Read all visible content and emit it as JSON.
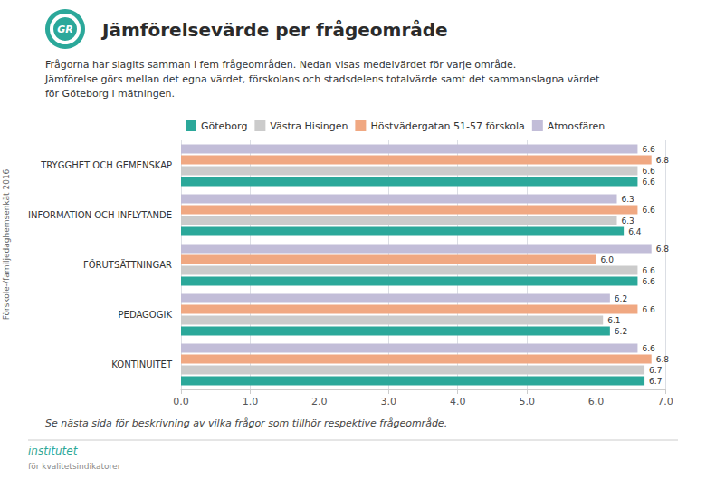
{
  "chart_data": {
    "type": "bar",
    "orientation": "horizontal",
    "title": "Jämförelsevärde per frågeområde",
    "subtitle": [
      "Frågorna har slagits samman i fem frågeområden. Nedan visas medelvärdet för varje område.",
      "Jämförelse görs mellan det egna värdet, förskolans och stadsdelens totalvärde samt det sammanslagna värdet",
      "för Göteborg i mätningen."
    ],
    "annotations": [
      "Se nästa sida för beskrivning av vilka frågor som tillhör respektive frågeområde.",
      "Förskole-/familjedaghemsenkät 2016",
      "GR",
      "institutet",
      "för kvalitetsindikatorer"
    ],
    "categories": [
      "KONTINUITET",
      "PEDAGOGIK",
      "FÖRUTSÄTTNINGAR",
      "INFORMATION OCH INFLYTANDE",
      "TRYGGHET OCH GEMENSKAP"
    ],
    "series": [
      {
        "name": "Göteborg",
        "color": "#2BA89A",
        "values": [
          6.7,
          6.2,
          6.6,
          6.4,
          6.6
        ],
        "value_labels": [
          "6.7",
          "6.2",
          "6.6",
          "6.4",
          "6.6"
        ]
      },
      {
        "name": "Västra Hisingen",
        "color": "#CBCBCB",
        "values": [
          6.7,
          6.1,
          6.6,
          6.3,
          6.6
        ],
        "value_labels": [
          "6.7",
          "6.1",
          "6.6",
          "6.3",
          "6.6"
        ]
      },
      {
        "name": "Höstvädergatan 51-57 förskola",
        "color": "#F0A882",
        "values": [
          6.8,
          6.6,
          6.0,
          6.6,
          6.8
        ],
        "value_labels": [
          "6.8",
          "6.6",
          "6.0",
          "6.6",
          "6.8"
        ]
      },
      {
        "name": "Atmosfären",
        "color": "#C2BDD8",
        "values": [
          6.6,
          6.2,
          6.8,
          6.3,
          6.6
        ],
        "value_labels": [
          "6.6",
          "6.2",
          "6.8",
          "6.3",
          "6.6"
        ]
      }
    ],
    "xlim": [
      0.0,
      7.0
    ],
    "xticks": [
      {
        "value": 0,
        "label": "0.0"
      },
      {
        "value": 1,
        "label": "1.0"
      },
      {
        "value": 2,
        "label": "2.0"
      },
      {
        "value": 3,
        "label": "3.0"
      },
      {
        "value": 4,
        "label": "4.0"
      },
      {
        "value": 5,
        "label": "5.0"
      },
      {
        "value": 6,
        "label": "6.0"
      },
      {
        "value": 7,
        "label": "7.0"
      }
    ],
    "grid": true,
    "legend": "upper left",
    "data_labels": true
  }
}
